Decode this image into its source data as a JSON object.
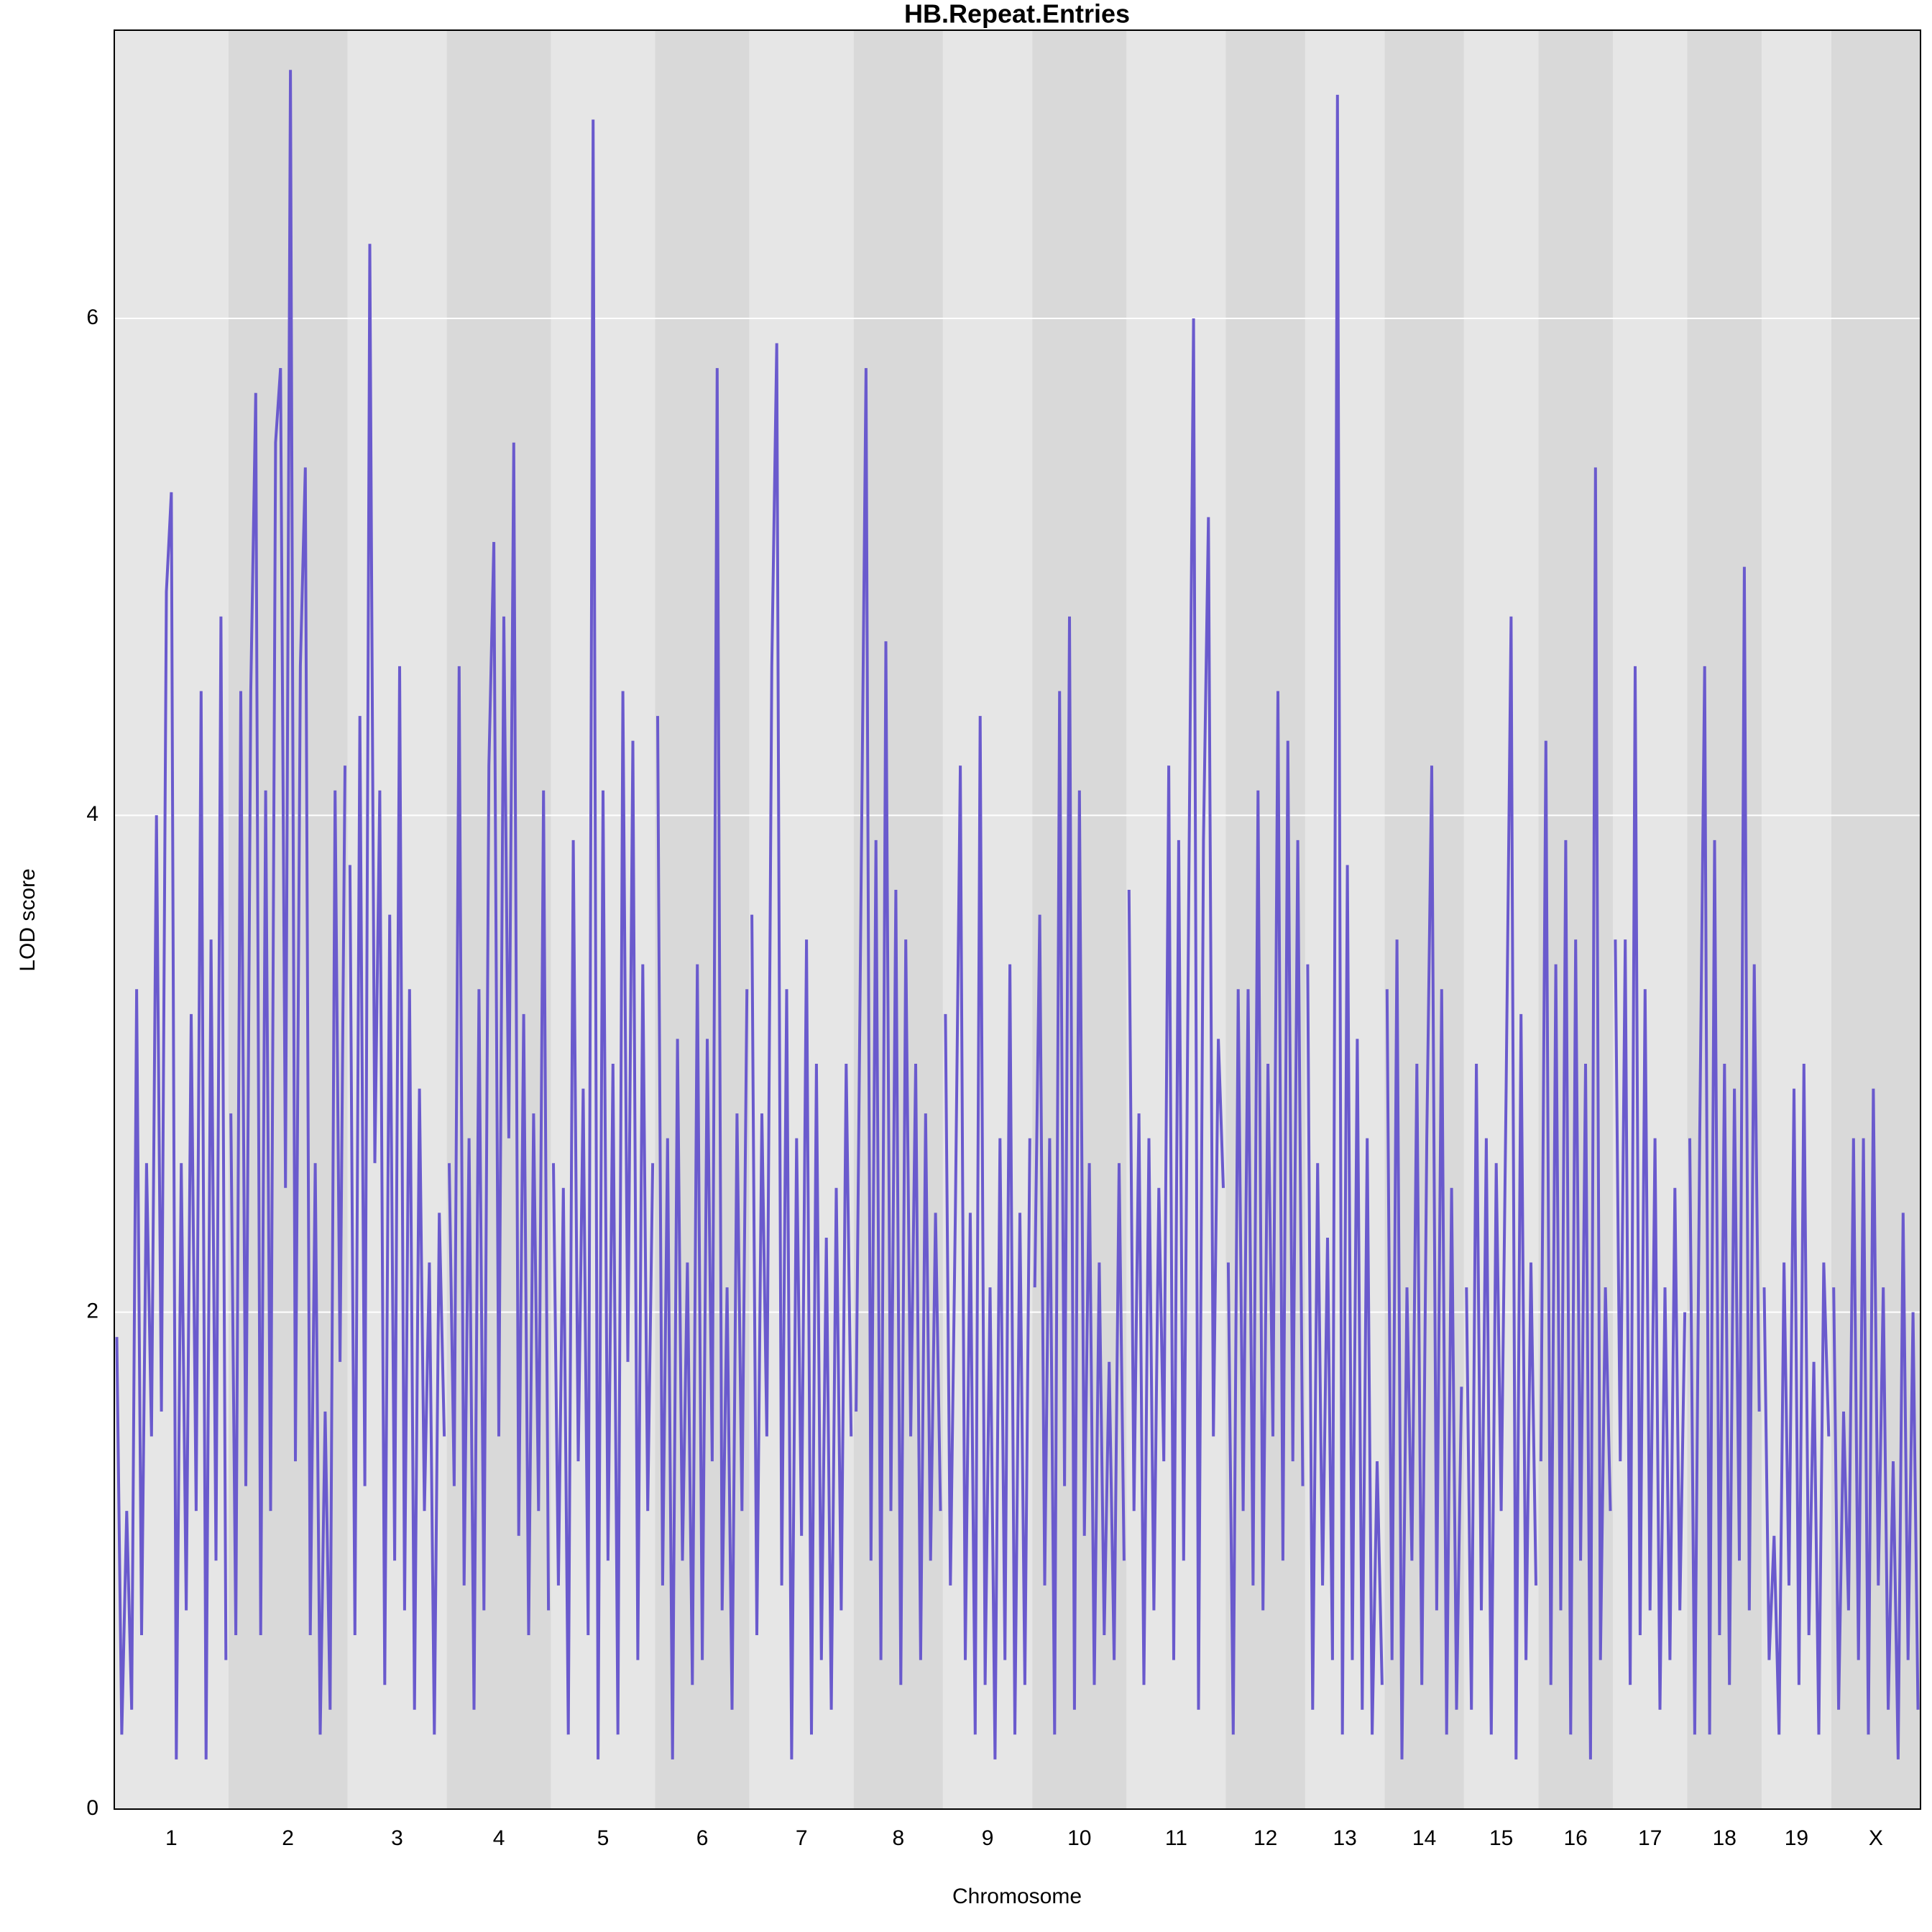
{
  "chart_data": {
    "type": "lod-profile",
    "title": "HB.Repeat.Entries",
    "xlabel": "Chromosome",
    "ylabel": "LOD score",
    "color": "#6a5acd",
    "band_colors": [
      "#e6e6e6",
      "#d9d9d9"
    ],
    "grid": true,
    "ylim": [
      0,
      7.16
    ],
    "yticks": [
      0,
      2,
      4,
      6
    ],
    "categories": [
      "1",
      "2",
      "3",
      "4",
      "5",
      "6",
      "7",
      "8",
      "9",
      "10",
      "11",
      "12",
      "13",
      "14",
      "15",
      "16",
      "17",
      "18",
      "19",
      "X"
    ],
    "values": [
      [
        1.9,
        0.3,
        1.2,
        0.4,
        3.3,
        0.7,
        2.6,
        1.5,
        4.0,
        1.6,
        4.9,
        5.3,
        0.2,
        2.6,
        0.8,
        3.2,
        1.2,
        4.5,
        0.2,
        3.5,
        1.0,
        4.8,
        0.6
      ],
      [
        2.8,
        0.7,
        4.5,
        1.3,
        4.5,
        5.7,
        0.7,
        4.1,
        1.2,
        5.5,
        5.8,
        2.5,
        7.0,
        1.4,
        4.6,
        5.4,
        0.7,
        2.6,
        0.3,
        1.6,
        0.4,
        4.1,
        1.8,
        4.2
      ],
      [
        3.8,
        0.7,
        4.4,
        1.3,
        6.3,
        2.6,
        4.1,
        0.5,
        3.6,
        1.0,
        4.6,
        0.8,
        3.3,
        0.4,
        2.9,
        1.2,
        2.2,
        0.3,
        2.4,
        1.5
      ],
      [
        2.6,
        1.3,
        4.6,
        0.9,
        2.7,
        0.4,
        3.3,
        0.8,
        4.2,
        5.1,
        1.5,
        4.8,
        2.7,
        5.5,
        1.1,
        3.2,
        0.7,
        2.8,
        1.2,
        4.1,
        0.8
      ],
      [
        2.6,
        0.9,
        2.5,
        0.3,
        3.9,
        1.4,
        2.9,
        0.7,
        6.8,
        0.2,
        4.1,
        1.0,
        3.0,
        0.3,
        4.5,
        1.8,
        4.3,
        0.6,
        3.4,
        1.2,
        2.6
      ],
      [
        4.4,
        0.9,
        2.7,
        0.2,
        3.1,
        1.0,
        2.2,
        0.5,
        3.4,
        0.6,
        3.1,
        1.4,
        5.8,
        0.8,
        2.1,
        0.4,
        2.8,
        1.2,
        3.3
      ],
      [
        3.6,
        0.7,
        2.8,
        1.5,
        4.6,
        5.9,
        0.9,
        3.3,
        0.2,
        2.7,
        1.1,
        3.5,
        0.3,
        3.0,
        0.6,
        2.3,
        0.4,
        2.5,
        0.8,
        3.0,
        1.5
      ],
      [
        1.6,
        3.7,
        5.8,
        1.0,
        3.9,
        0.6,
        4.7,
        1.2,
        3.7,
        0.5,
        3.5,
        1.5,
        3.0,
        0.6,
        2.8,
        1.0,
        2.4,
        1.2
      ],
      [
        3.2,
        0.9,
        2.4,
        4.2,
        0.6,
        2.4,
        0.3,
        4.4,
        0.5,
        2.1,
        0.2,
        2.7,
        0.6,
        3.4,
        0.3,
        2.4,
        0.5,
        2.7
      ],
      [
        2.1,
        3.6,
        0.9,
        2.7,
        0.3,
        4.5,
        1.3,
        4.8,
        0.4,
        4.1,
        1.1,
        2.6,
        0.5,
        2.2,
        0.7,
        1.8,
        0.6,
        2.6,
        1.0
      ],
      [
        3.7,
        1.2,
        2.8,
        0.5,
        2.7,
        0.8,
        2.5,
        1.4,
        4.2,
        0.6,
        3.9,
        1.0,
        3.6,
        6.0,
        0.4,
        3.9,
        5.2,
        1.5,
        3.1,
        2.5
      ],
      [
        2.2,
        0.3,
        3.3,
        1.2,
        3.3,
        0.9,
        4.1,
        0.8,
        3.0,
        1.5,
        4.5,
        1.0,
        4.3,
        1.4,
        3.9,
        1.3
      ],
      [
        3.4,
        0.4,
        2.6,
        0.9,
        2.3,
        0.6,
        6.9,
        0.3,
        3.8,
        0.6,
        3.1,
        0.4,
        2.7,
        0.3,
        1.4,
        0.5
      ],
      [
        3.3,
        0.6,
        3.5,
        0.2,
        2.1,
        1.0,
        3.0,
        0.5,
        2.7,
        4.2,
        0.8,
        3.3,
        0.3,
        2.5,
        0.4,
        1.7
      ],
      [
        2.1,
        0.4,
        3.0,
        0.8,
        2.7,
        0.3,
        2.6,
        1.2,
        2.9,
        4.8,
        0.2,
        3.2,
        0.6,
        2.2,
        0.9
      ],
      [
        1.4,
        4.3,
        0.5,
        3.4,
        0.8,
        3.9,
        0.3,
        3.5,
        1.0,
        3.0,
        0.2,
        5.4,
        0.6,
        2.1,
        1.2
      ],
      [
        3.5,
        1.4,
        3.5,
        0.5,
        4.6,
        0.7,
        3.3,
        0.8,
        2.7,
        0.4,
        2.1,
        0.6,
        2.5,
        0.8,
        2.0
      ],
      [
        2.7,
        0.3,
        2.7,
        4.6,
        0.3,
        3.9,
        0.7,
        3.0,
        0.5,
        2.9,
        1.0,
        5.0,
        0.8,
        3.4,
        1.6
      ],
      [
        2.1,
        0.6,
        1.1,
        0.3,
        2.2,
        0.9,
        2.9,
        0.5,
        3.0,
        0.7,
        1.8,
        0.3,
        2.2,
        1.5
      ],
      [
        2.1,
        0.4,
        1.6,
        0.8,
        2.7,
        0.6,
        2.7,
        0.3,
        2.9,
        0.9,
        2.1,
        0.4,
        1.4,
        0.2,
        2.4,
        0.6,
        2.0,
        0.4
      ]
    ]
  }
}
